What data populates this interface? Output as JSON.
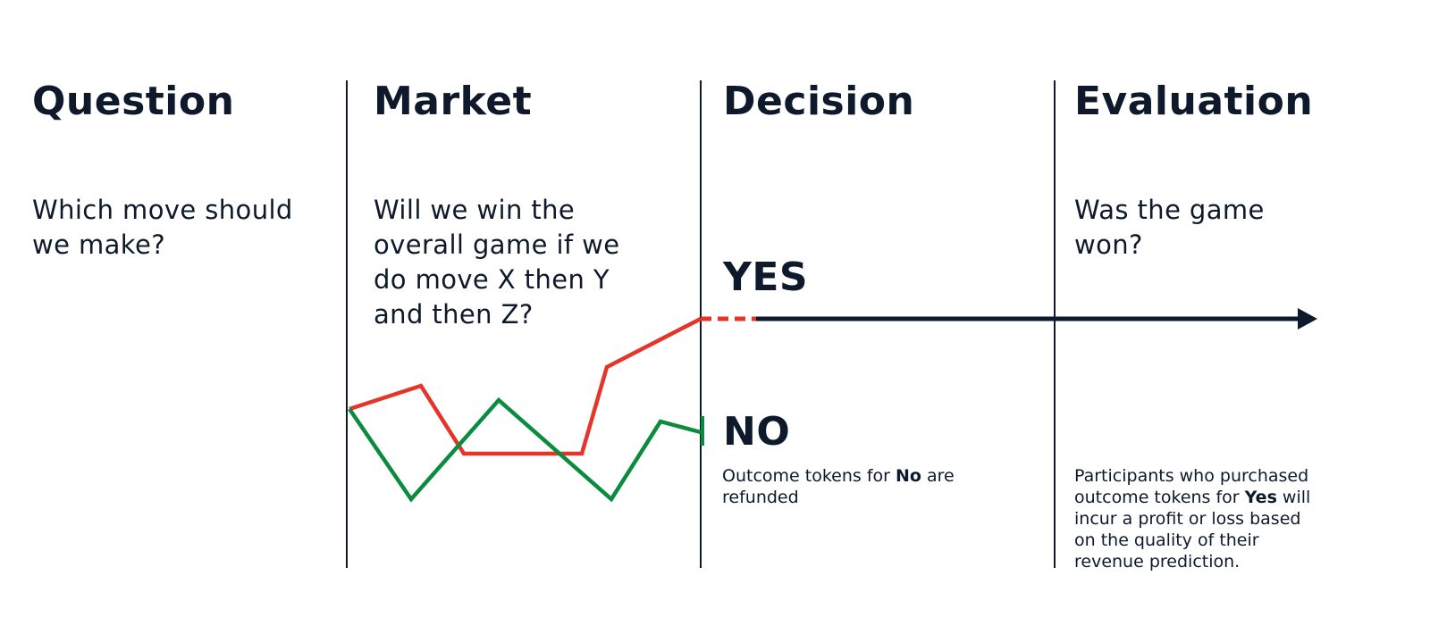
{
  "columns": [
    {
      "heading": "Question",
      "question": "Which move should we make?"
    },
    {
      "heading": "Market",
      "question": "Will we win the overall game if we do move X then Y and then Z?"
    },
    {
      "heading": "Decision",
      "question": ""
    },
    {
      "heading": "Evaluation",
      "question": "Was the game won?"
    }
  ],
  "decision": {
    "yes_label": "YES",
    "no_label": "NO",
    "no_note": {
      "prefix": "Outcome tokens for ",
      "bold": "No",
      "suffix": " are refunded"
    }
  },
  "evaluation": {
    "note": {
      "prefix": "Participants who purchased outcome tokens for ",
      "bold": "Yes",
      "suffix": " will incur a profit or loss based on the quality of their revenue prediction."
    }
  },
  "colors": {
    "ink": "#0e1a2b",
    "yes_line": "#e5352b",
    "no_line": "#0a8c3f"
  }
}
